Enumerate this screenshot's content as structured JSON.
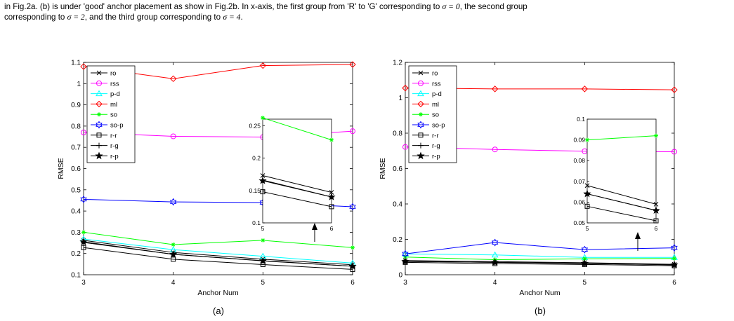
{
  "caption": {
    "line1_a": "in Fig.2a. (b) is under 'good' anchor placement as show in Fig.2b. In x-axis, the first group from 'R' to 'G' corresponding to ",
    "line1_math": "σ = 0",
    "line1_b": ", the second group",
    "line2_a": "corresponding to ",
    "line2_math1": "σ = 2",
    "line2_b": ", and the third group corresponding to ",
    "line2_math2": "σ = 4",
    "line2_c": "."
  },
  "series_styles": {
    "ro": {
      "color": "#000000",
      "marker": "x"
    },
    "rss": {
      "color": "#ff00ff",
      "marker": "circle"
    },
    "p-d": {
      "color": "#00ffff",
      "marker": "triangle"
    },
    "ml": {
      "color": "#ff0000",
      "marker": "diamond"
    },
    "so": {
      "color": "#00ff00",
      "marker": "asterisk"
    },
    "so-p": {
      "color": "#0000ff",
      "marker": "hexagram"
    },
    "r-r": {
      "color": "#000000",
      "marker": "square"
    },
    "r-g": {
      "color": "#000000",
      "marker": "plus"
    },
    "r-p": {
      "color": "#000000",
      "marker": "pentagram"
    }
  },
  "chart_data": [
    {
      "type": "line",
      "panel_label": "(a)",
      "xlabel": "Anchor Num",
      "ylabel": "RMSE",
      "x": [
        3,
        4,
        5,
        6
      ],
      "xticks": [
        "3",
        "4",
        "5",
        "6"
      ],
      "ylim": [
        0.1,
        1.1
      ],
      "yticks": [
        "0.1",
        "0.2",
        "0.3",
        "0.4",
        "0.5",
        "0.6",
        "0.7",
        "0.8",
        "0.9",
        "1",
        "1.1"
      ],
      "legend_position": "top-left",
      "grid": false,
      "series": [
        {
          "name": "ro",
          "values": [
            0.262,
            0.205,
            0.173,
            0.147
          ]
        },
        {
          "name": "rss",
          "values": [
            0.77,
            0.752,
            0.748,
            0.776
          ]
        },
        {
          "name": "p-d",
          "values": [
            0.268,
            0.218,
            0.187,
            0.155
          ]
        },
        {
          "name": "ml",
          "values": [
            1.08,
            1.023,
            1.085,
            1.09
          ]
        },
        {
          "name": "so",
          "values": [
            0.3,
            0.242,
            0.262,
            0.228
          ]
        },
        {
          "name": "so-p",
          "values": [
            0.455,
            0.443,
            0.44,
            0.42
          ]
        },
        {
          "name": "r-r",
          "values": [
            0.228,
            0.173,
            0.148,
            0.125
          ]
        },
        {
          "name": "r-g",
          "values": [
            0.252,
            0.196,
            0.166,
            0.14
          ]
        },
        {
          "name": "r-p",
          "values": [
            0.255,
            0.196,
            0.165,
            0.14
          ]
        }
      ],
      "inset": {
        "x": [
          5,
          6
        ],
        "xticks": [
          "5",
          "6"
        ],
        "ylim": [
          0.1,
          0.26
        ],
        "yticks": [
          "0.1",
          "0.15",
          "0.2",
          "0.25"
        ],
        "series": [
          {
            "name": "so",
            "values": [
              0.262,
              0.228
            ]
          },
          {
            "name": "ro",
            "values": [
              0.173,
              0.147
            ]
          },
          {
            "name": "r-g",
            "values": [
              0.166,
              0.14
            ]
          },
          {
            "name": "r-p",
            "values": [
              0.165,
              0.14
            ]
          },
          {
            "name": "r-r",
            "values": [
              0.148,
              0.125
            ]
          }
        ]
      }
    },
    {
      "type": "line",
      "panel_label": "(b)",
      "xlabel": "Anchor Num",
      "ylabel": "RMSE",
      "x": [
        3,
        4,
        5,
        6
      ],
      "xticks": [
        "3",
        "4",
        "5",
        "6"
      ],
      "ylim": [
        0,
        1.2
      ],
      "yticks": [
        "0",
        "0.2",
        "0.4",
        "0.6",
        "0.8",
        "1",
        "1.2"
      ],
      "legend_position": "top-left",
      "grid": false,
      "series": [
        {
          "name": "ro",
          "values": [
            0.08,
            0.074,
            0.068,
            0.059
          ]
        },
        {
          "name": "rss",
          "values": [
            0.722,
            0.708,
            0.698,
            0.695
          ]
        },
        {
          "name": "p-d",
          "values": [
            0.118,
            0.112,
            0.098,
            0.098
          ]
        },
        {
          "name": "ml",
          "values": [
            1.055,
            1.05,
            1.05,
            1.045
          ]
        },
        {
          "name": "so",
          "values": [
            0.1,
            0.085,
            0.09,
            0.092
          ]
        },
        {
          "name": "so-p",
          "values": [
            0.118,
            0.182,
            0.142,
            0.152
          ]
        },
        {
          "name": "r-r",
          "values": [
            0.07,
            0.063,
            0.058,
            0.051
          ]
        },
        {
          "name": "r-g",
          "values": [
            0.075,
            0.07,
            0.064,
            0.056
          ]
        },
        {
          "name": "r-p",
          "values": [
            0.075,
            0.07,
            0.064,
            0.056
          ]
        }
      ],
      "inset": {
        "x": [
          5,
          6
        ],
        "xticks": [
          "5",
          "6"
        ],
        "ylim": [
          0.05,
          0.1
        ],
        "yticks": [
          "0.05",
          "0.06",
          "0.07",
          "0.08",
          "0.09",
          "0.1"
        ],
        "series": [
          {
            "name": "so",
            "values": [
              0.09,
              0.092
            ]
          },
          {
            "name": "ro",
            "values": [
              0.068,
              0.059
            ]
          },
          {
            "name": "r-g",
            "values": [
              0.064,
              0.056
            ]
          },
          {
            "name": "r-p",
            "values": [
              0.064,
              0.056
            ]
          },
          {
            "name": "r-r",
            "values": [
              0.058,
              0.051
            ]
          }
        ]
      }
    }
  ]
}
